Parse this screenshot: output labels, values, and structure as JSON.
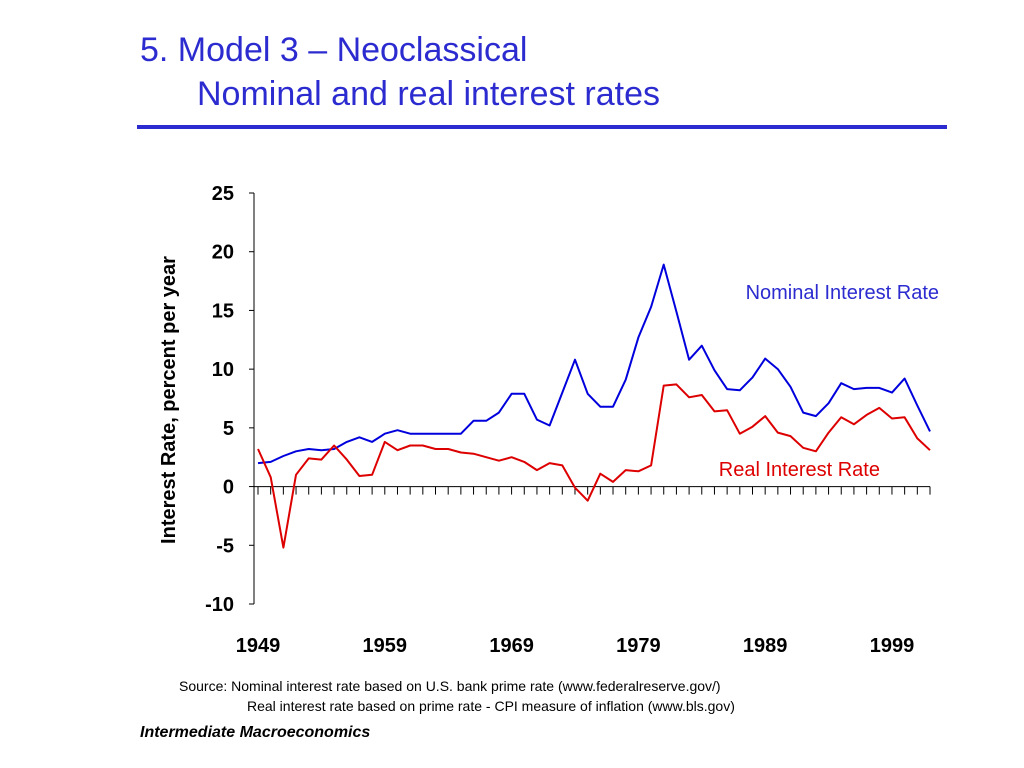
{
  "slide": {
    "title_line1": "5.  Model 3 – Neoclassical",
    "title_line2": "Nominal and real interest rates",
    "source_line1": "Source: Nominal interest rate based on U.S. bank prime rate (www.federalreserve.gov/)",
    "source_line2": "Real interest rate based on prime rate - CPI measure of inflation (www.bls.gov)",
    "footer": "Intermediate Macroeconomics",
    "accent_color": "#2b2bd0"
  },
  "chart_data": {
    "type": "line",
    "title": "",
    "xlabel": "",
    "ylabel": "Interest Rate, percent per year",
    "ylim": [
      -10,
      25
    ],
    "yticks": [
      25,
      20,
      15,
      10,
      5,
      0,
      -5,
      -10
    ],
    "xlim": [
      1949,
      2002
    ],
    "xtick_labels": [
      "1949",
      "1959",
      "1969",
      "1979",
      "1989",
      "1999"
    ],
    "grid": false,
    "x": [
      1949,
      1950,
      1951,
      1952,
      1953,
      1954,
      1955,
      1956,
      1957,
      1958,
      1959,
      1960,
      1961,
      1962,
      1963,
      1964,
      1965,
      1966,
      1967,
      1968,
      1969,
      1970,
      1971,
      1972,
      1973,
      1974,
      1975,
      1976,
      1977,
      1978,
      1979,
      1980,
      1981,
      1982,
      1983,
      1984,
      1985,
      1986,
      1987,
      1988,
      1989,
      1990,
      1991,
      1992,
      1993,
      1994,
      1995,
      1996,
      1997,
      1998,
      1999,
      2000,
      2001,
      2002
    ],
    "series": [
      {
        "name": "Nominal Interest Rate",
        "color": "#0000dd",
        "values": [
          2.0,
          2.1,
          2.6,
          3.0,
          3.2,
          3.1,
          3.2,
          3.8,
          4.2,
          3.8,
          4.5,
          4.8,
          4.5,
          4.5,
          4.5,
          4.5,
          4.5,
          5.6,
          5.6,
          6.3,
          7.9,
          7.9,
          5.7,
          5.2,
          8.0,
          10.8,
          7.9,
          6.8,
          6.8,
          9.1,
          12.7,
          15.3,
          18.9,
          14.9,
          10.8,
          12.0,
          9.9,
          8.3,
          8.2,
          9.3,
          10.9,
          10.0,
          8.5,
          6.3,
          6.0,
          7.1,
          8.8,
          8.3,
          8.4,
          8.4,
          8.0,
          9.2,
          6.9,
          4.7
        ]
      },
      {
        "name": "Real Interest Rate",
        "color": "#dd0000",
        "values": [
          3.2,
          0.8,
          -5.2,
          1.0,
          2.4,
          2.3,
          3.5,
          2.3,
          0.9,
          1.0,
          3.8,
          3.1,
          3.5,
          3.5,
          3.2,
          3.2,
          2.9,
          2.8,
          2.5,
          2.2,
          2.5,
          2.1,
          1.4,
          2.0,
          1.8,
          -0.1,
          -1.2,
          1.1,
          0.4,
          1.4,
          1.3,
          1.8,
          8.6,
          8.7,
          7.6,
          7.8,
          6.4,
          6.5,
          4.5,
          5.1,
          6.0,
          4.6,
          4.3,
          3.3,
          3.0,
          4.6,
          5.9,
          5.3,
          6.1,
          6.7,
          5.8,
          5.9,
          4.1,
          3.1
        ]
      }
    ]
  }
}
